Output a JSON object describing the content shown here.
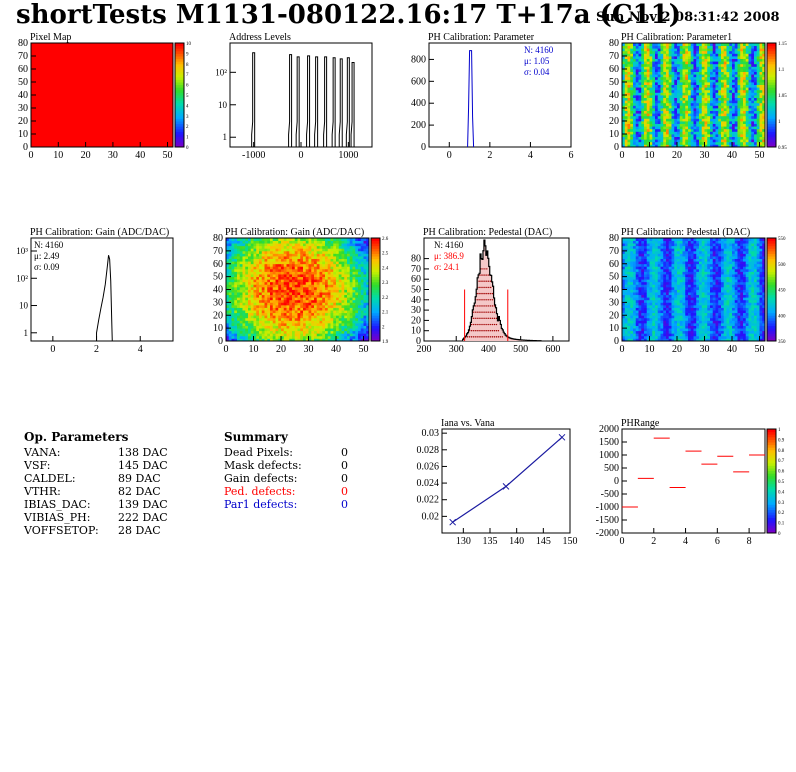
{
  "header": {
    "title": "shortTests M1131-080122.16:17 T+17a (C11)",
    "date": "Sun Nov  2 08:31:42 2008"
  },
  "colors": {
    "red": "#ff0000",
    "blue": "#0000cc",
    "black": "#000000"
  },
  "op_params": {
    "title": "Op. Parameters",
    "rows": [
      {
        "name": "VANA:",
        "value": "138 DAC"
      },
      {
        "name": "VSF:",
        "value": "145 DAC"
      },
      {
        "name": "CALDEL:",
        "value": "89 DAC"
      },
      {
        "name": "VTHR:",
        "value": "82 DAC"
      },
      {
        "name": "IBIAS_DAC:",
        "value": "139 DAC"
      },
      {
        "name": "VIBIAS_PH:",
        "value": "222 DAC"
      },
      {
        "name": "VOFFSETOP:",
        "value": "28 DAC"
      }
    ]
  },
  "summary": {
    "title": "Summary",
    "rows": [
      {
        "name": "Dead Pixels:",
        "value": "0",
        "color": "#000000"
      },
      {
        "name": "Mask defects:",
        "value": "0",
        "color": "#000000"
      },
      {
        "name": "Gain defects:",
        "value": "0",
        "color": "#000000"
      },
      {
        "name": "Ped. defects:",
        "value": "0",
        "color": "#ff0000"
      },
      {
        "name": "Par1 defects:",
        "value": "0",
        "color": "#0000cc"
      }
    ]
  },
  "chart_data": [
    {
      "id": "pixel-map",
      "type": "heatmap",
      "title": "Pixel Map",
      "xlim": [
        0,
        52
      ],
      "ylim": [
        0,
        80
      ],
      "xticks": [
        "0",
        "10",
        "20",
        "30",
        "40",
        "50"
      ],
      "yticks": [
        "0",
        "10",
        "20",
        "30",
        "40",
        "50",
        "60",
        "70",
        "80"
      ],
      "zticks": [
        "0",
        "1",
        "2",
        "3",
        "4",
        "5",
        "6",
        "7",
        "8",
        "9",
        "10"
      ],
      "fill": "uniform red (10 hits per pixel)"
    },
    {
      "id": "address-levels",
      "type": "bar",
      "title": "Address Levels",
      "xlim": [
        -1500,
        1500
      ],
      "log_y": true,
      "xticks": [
        "-1000",
        "0",
        "1000"
      ],
      "yticks": [
        "1",
        "10",
        "10²"
      ],
      "peaks_x": [
        -1000,
        -220,
        -60,
        160,
        330,
        520,
        700,
        850,
        1000,
        1100
      ],
      "peaks_y": [
        400,
        350,
        300,
        320,
        300,
        300,
        280,
        260,
        280,
        200
      ]
    },
    {
      "id": "ph-param",
      "type": "bar",
      "title": "PH Calibration: Parameter",
      "xlim": [
        -1,
        6
      ],
      "ylim": [
        0,
        950
      ],
      "xticks": [
        "0",
        "2",
        "4",
        "6"
      ],
      "yticks": [
        "0",
        "200",
        "400",
        "600",
        "800"
      ],
      "stats": {
        "N": "4160",
        "mean": "1.05",
        "sigma": "0.04"
      },
      "peak": {
        "x": 1.05,
        "y": 880
      }
    },
    {
      "id": "ph-param1",
      "type": "heatmap",
      "title": "PH Calibration: Parameter1",
      "xlim": [
        0,
        52
      ],
      "ylim": [
        0,
        80
      ],
      "xticks": [
        "0",
        "10",
        "20",
        "30",
        "40",
        "50"
      ],
      "yticks": [
        "0",
        "10",
        "20",
        "30",
        "40",
        "50",
        "60",
        "70",
        "80"
      ],
      "zticks": [
        "0.95",
        "1",
        "1.05",
        "1.1",
        "1.15"
      ]
    },
    {
      "id": "gain-hist",
      "type": "bar",
      "title": "PH Calibration: Gain (ADC/DAC)",
      "xlim": [
        -1,
        5.5
      ],
      "log_y": true,
      "xticks": [
        "0",
        "2",
        "4"
      ],
      "yticks": [
        "1",
        "10",
        "10²",
        "10³"
      ],
      "stats": {
        "N": "4160",
        "mean": "2.49",
        "sigma": "0.09"
      },
      "x": [
        2.0,
        2.1,
        2.2,
        2.3,
        2.4,
        2.5,
        2.55,
        2.6,
        2.65,
        2.7
      ],
      "y": [
        1,
        3,
        8,
        20,
        60,
        300,
        700,
        500,
        80,
        2
      ]
    },
    {
      "id": "gain-map",
      "type": "heatmap",
      "title": "PH Calibration: Gain (ADC/DAC)",
      "xlim": [
        0,
        52
      ],
      "ylim": [
        0,
        80
      ],
      "xticks": [
        "0",
        "10",
        "20",
        "30",
        "40",
        "50"
      ],
      "yticks": [
        "0",
        "10",
        "20",
        "30",
        "40",
        "50",
        "60",
        "70",
        "80"
      ],
      "zticks": [
        "1.9",
        "2",
        "2.1",
        "2.2",
        "2.3",
        "2.4",
        "2.5",
        "2.6"
      ]
    },
    {
      "id": "pedestal-hist",
      "type": "bar",
      "title": "PH Calibration: Pedestal (DAC)",
      "xlim": [
        200,
        650
      ],
      "ylim": [
        0,
        100
      ],
      "xticks": [
        "200",
        "300",
        "400",
        "500",
        "600"
      ],
      "yticks": [
        "0",
        "10",
        "20",
        "30",
        "40",
        "50",
        "60",
        "70",
        "80"
      ],
      "stats": {
        "N": "4160",
        "mean": "386.9",
        "sigma": "24.1"
      },
      "cut_lines": [
        326,
        460
      ],
      "gauss_mean": 386.9,
      "gauss_sigma": 24.1,
      "peak": 90
    },
    {
      "id": "pedestal-map",
      "type": "heatmap",
      "title": "PH Calibration: Pedestal (DAC)",
      "xlim": [
        0,
        52
      ],
      "ylim": [
        0,
        80
      ],
      "xticks": [
        "0",
        "10",
        "20",
        "30",
        "40",
        "50"
      ],
      "yticks": [
        "0",
        "10",
        "20",
        "30",
        "40",
        "50",
        "60",
        "70",
        "80"
      ],
      "zticks": [
        "350",
        "400",
        "450",
        "500",
        "550"
      ]
    },
    {
      "id": "iana-vana",
      "type": "line",
      "title": "Iana vs. Vana",
      "xlim": [
        126,
        150
      ],
      "ylim": [
        0.018,
        0.0305
      ],
      "xticks": [
        "130",
        "135",
        "140",
        "145",
        "150"
      ],
      "yticks": [
        "0.02",
        "0.022",
        "0.024",
        "0.026",
        "0.028",
        "0.03"
      ],
      "x": [
        128,
        138,
        148.5
      ],
      "y": [
        0.0193,
        0.0236,
        0.0295
      ]
    },
    {
      "id": "phrange",
      "type": "heatmap",
      "title": "PHRange",
      "xlim": [
        0,
        9
      ],
      "ylim": [
        -2000,
        2000
      ],
      "xticks": [
        "0",
        "2",
        "4",
        "6",
        "8"
      ],
      "yticks": [
        "-2000",
        "-1500",
        "-1000",
        "-500",
        "0",
        "500",
        "1000",
        "1500",
        "2000"
      ],
      "zticks": [
        "0",
        "0.1",
        "0.2",
        "0.3",
        "0.4",
        "0.5",
        "0.6",
        "0.7",
        "0.8",
        "0.9",
        "1"
      ],
      "segments_x": [
        0.5,
        1.5,
        2.5,
        3.5,
        4.5,
        5.5,
        6.5,
        7.5,
        8.5
      ],
      "segments_y": [
        -1000,
        100,
        1650,
        -250,
        1150,
        650,
        950,
        350,
        1000
      ]
    }
  ]
}
